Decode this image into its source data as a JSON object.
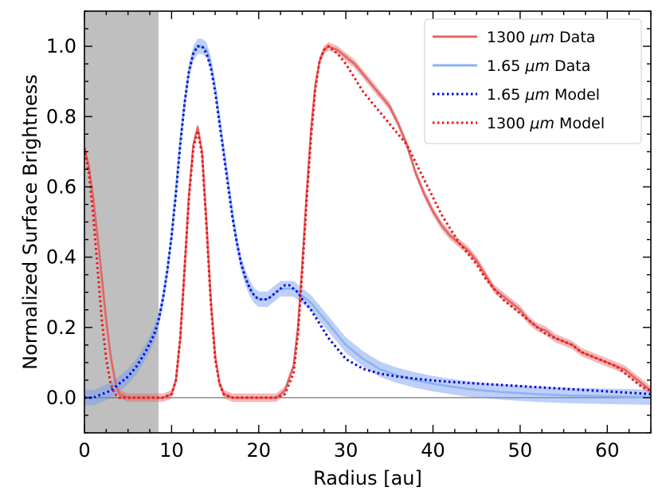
{
  "chart_data": {
    "type": "line",
    "xlabel": "Radius [au]",
    "ylabel": "Normalized Surface Brightness",
    "xlim": [
      0,
      65
    ],
    "ylim": [
      -0.1,
      1.1
    ],
    "xticks": [
      0,
      10,
      20,
      30,
      40,
      50,
      60
    ],
    "yticks": [
      0.0,
      0.2,
      0.4,
      0.6,
      0.8,
      1.0
    ],
    "xtick_labels": [
      "0",
      "10",
      "20",
      "30",
      "40",
      "50",
      "60"
    ],
    "ytick_labels": [
      "0.0",
      "0.2",
      "0.4",
      "0.6",
      "0.8",
      "1.0"
    ],
    "shaded_region": {
      "x": [
        0,
        8.5
      ],
      "color": "#bfbfbf"
    },
    "zero_line": 0,
    "legend_position": "top-right",
    "series": [
      {
        "name": "1300 μm Data",
        "legend_prefix": "1300 ",
        "legend_unit": "μm",
        "legend_suffix": " Data",
        "style": "solid",
        "color": "#e06666",
        "band_color": "#e06666",
        "band_halfwidth": 0.012,
        "x": [
          0,
          0.5,
          1,
          1.5,
          2,
          2.5,
          3,
          3.5,
          4,
          5,
          6,
          7,
          8,
          9,
          10,
          10.5,
          11,
          11.5,
          12,
          12.5,
          13,
          13.5,
          14,
          14.5,
          15,
          15.5,
          16,
          17,
          18,
          19,
          20,
          21,
          22,
          23,
          24,
          24.5,
          25,
          25.5,
          26,
          26.5,
          27,
          27.5,
          28,
          29,
          30,
          31,
          32,
          33,
          34,
          35,
          36,
          37,
          38,
          39,
          40,
          41,
          42,
          43,
          44,
          45,
          46,
          47,
          48,
          49,
          50,
          51,
          52,
          53,
          54,
          55,
          56,
          57,
          58,
          59,
          60,
          61,
          62,
          63,
          64,
          65
        ],
        "y": [
          0.71,
          0.66,
          0.57,
          0.46,
          0.34,
          0.22,
          0.12,
          0.05,
          0.01,
          0.0,
          0.0,
          0.0,
          0.0,
          0.0,
          0.01,
          0.05,
          0.17,
          0.37,
          0.58,
          0.72,
          0.77,
          0.7,
          0.5,
          0.28,
          0.12,
          0.04,
          0.01,
          0.0,
          0.0,
          0.0,
          0.0,
          0.0,
          0.0,
          0.02,
          0.09,
          0.2,
          0.38,
          0.58,
          0.76,
          0.89,
          0.96,
          0.99,
          1.0,
          0.99,
          0.97,
          0.95,
          0.92,
          0.89,
          0.86,
          0.83,
          0.78,
          0.72,
          0.64,
          0.58,
          0.53,
          0.49,
          0.46,
          0.44,
          0.42,
          0.39,
          0.35,
          0.31,
          0.29,
          0.27,
          0.25,
          0.22,
          0.2,
          0.19,
          0.17,
          0.16,
          0.15,
          0.13,
          0.12,
          0.11,
          0.1,
          0.09,
          0.08,
          0.06,
          0.04,
          0.02
        ]
      },
      {
        "name": "1.65 μm Data",
        "legend_prefix": "1.65 ",
        "legend_unit": "μm",
        "legend_suffix": " Data",
        "style": "solid",
        "color": "#8ab4ee",
        "band_color": "#6f95f0",
        "band_halfwidth": 0.022,
        "x": [
          0,
          1,
          2,
          3,
          4,
          5,
          6,
          7,
          8,
          8.5,
          9,
          9.5,
          10,
          10.5,
          11,
          11.5,
          12,
          12.5,
          13,
          13.5,
          14,
          14.5,
          15,
          15.5,
          16,
          16.5,
          17,
          17.5,
          18,
          18.5,
          19,
          19.5,
          20,
          20.5,
          21,
          21.5,
          22,
          22.5,
          23,
          23.5,
          24,
          24.5,
          25,
          26,
          27,
          28,
          29,
          30,
          32,
          34,
          36,
          38,
          40,
          42,
          44,
          46,
          48,
          50,
          52,
          54,
          56,
          58,
          60,
          62,
          64,
          65
        ],
        "y": [
          0.0,
          0.0,
          0.01,
          0.02,
          0.04,
          0.06,
          0.09,
          0.13,
          0.18,
          0.22,
          0.28,
          0.36,
          0.46,
          0.59,
          0.73,
          0.84,
          0.93,
          0.98,
          1.0,
          1.0,
          0.99,
          0.95,
          0.88,
          0.79,
          0.7,
          0.61,
          0.52,
          0.44,
          0.38,
          0.34,
          0.31,
          0.29,
          0.28,
          0.28,
          0.28,
          0.29,
          0.3,
          0.31,
          0.31,
          0.31,
          0.31,
          0.3,
          0.29,
          0.27,
          0.24,
          0.21,
          0.18,
          0.15,
          0.11,
          0.08,
          0.063,
          0.05,
          0.04,
          0.032,
          0.025,
          0.02,
          0.016,
          0.013,
          0.01,
          0.008,
          0.006,
          0.005,
          0.004,
          0.003,
          0.002,
          0.002
        ]
      },
      {
        "name": "1.65 μm Model",
        "legend_prefix": "1.65 ",
        "legend_unit": "μm",
        "legend_suffix": " Model",
        "style": "dotted",
        "color": "#0000dd",
        "x": [
          0,
          1,
          2,
          3,
          4,
          5,
          6,
          7,
          8,
          8.5,
          9,
          9.5,
          10,
          10.5,
          11,
          11.5,
          12,
          12.5,
          13,
          13.5,
          14,
          14.5,
          15,
          15.5,
          16,
          16.5,
          17,
          17.5,
          18,
          18.5,
          19,
          19.5,
          20,
          20.5,
          21,
          21.5,
          22,
          22.5,
          23,
          23.5,
          24,
          24.5,
          25,
          26,
          27,
          28,
          29,
          30,
          32,
          34,
          36,
          38,
          40,
          42,
          44,
          46,
          48,
          50,
          52,
          54,
          56,
          58,
          60,
          62,
          64,
          65
        ],
        "y": [
          0.0,
          0.0,
          0.01,
          0.02,
          0.04,
          0.06,
          0.09,
          0.13,
          0.18,
          0.22,
          0.28,
          0.36,
          0.46,
          0.58,
          0.72,
          0.84,
          0.93,
          0.98,
          1.0,
          1.0,
          0.98,
          0.94,
          0.87,
          0.78,
          0.69,
          0.6,
          0.51,
          0.44,
          0.38,
          0.34,
          0.31,
          0.29,
          0.28,
          0.28,
          0.28,
          0.29,
          0.3,
          0.31,
          0.32,
          0.32,
          0.31,
          0.3,
          0.28,
          0.25,
          0.21,
          0.17,
          0.14,
          0.11,
          0.082,
          0.068,
          0.06,
          0.054,
          0.049,
          0.045,
          0.042,
          0.039,
          0.036,
          0.033,
          0.03,
          0.027,
          0.024,
          0.021,
          0.018,
          0.015,
          0.012,
          0.01
        ]
      },
      {
        "name": "1300 μm Model",
        "legend_prefix": "1300 ",
        "legend_unit": "μm",
        "legend_suffix": " Model",
        "style": "dotted",
        "color": "#ee1111",
        "x": [
          0,
          0.5,
          1,
          1.5,
          2,
          2.5,
          3,
          3.5,
          4,
          5,
          6,
          7,
          8,
          9,
          10,
          10.5,
          11,
          11.5,
          12,
          12.5,
          13,
          13.5,
          14,
          14.5,
          15,
          15.5,
          16,
          17,
          18,
          19,
          20,
          21,
          22,
          23,
          24,
          24.5,
          25,
          25.5,
          26,
          26.5,
          27,
          27.5,
          28,
          29,
          30,
          31,
          32,
          33,
          34,
          35,
          36,
          37,
          38,
          39,
          40,
          41,
          42,
          43,
          44,
          45,
          46,
          47,
          48,
          49,
          50,
          51,
          52,
          53,
          54,
          55,
          56,
          57,
          58,
          59,
          60,
          61,
          62,
          63,
          64,
          65
        ],
        "y": [
          0.71,
          0.64,
          0.52,
          0.37,
          0.22,
          0.11,
          0.04,
          0.01,
          0.0,
          0.0,
          0.0,
          0.0,
          0.0,
          0.0,
          0.01,
          0.05,
          0.17,
          0.37,
          0.57,
          0.71,
          0.76,
          0.69,
          0.49,
          0.27,
          0.11,
          0.04,
          0.01,
          0.0,
          0.0,
          0.0,
          0.0,
          0.0,
          0.0,
          0.01,
          0.07,
          0.18,
          0.36,
          0.56,
          0.74,
          0.88,
          0.96,
          0.99,
          1.0,
          0.98,
          0.95,
          0.91,
          0.87,
          0.84,
          0.81,
          0.78,
          0.75,
          0.72,
          0.67,
          0.62,
          0.57,
          0.52,
          0.48,
          0.44,
          0.41,
          0.38,
          0.34,
          0.31,
          0.28,
          0.26,
          0.24,
          0.22,
          0.2,
          0.18,
          0.17,
          0.16,
          0.15,
          0.13,
          0.12,
          0.11,
          0.1,
          0.09,
          0.07,
          0.05,
          0.03,
          0.02
        ]
      }
    ]
  }
}
